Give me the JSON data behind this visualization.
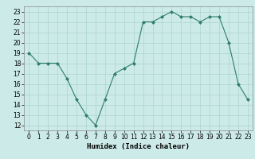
{
  "x": [
    0,
    1,
    2,
    3,
    4,
    5,
    6,
    7,
    8,
    9,
    10,
    11,
    12,
    13,
    14,
    15,
    16,
    17,
    18,
    19,
    20,
    21,
    22,
    23
  ],
  "y": [
    19,
    18,
    18,
    18,
    16.5,
    14.5,
    13,
    12,
    14.5,
    17,
    17.5,
    18,
    22,
    22,
    22.5,
    23,
    22.5,
    22.5,
    22,
    22.5,
    22.5,
    20,
    16,
    14.5
  ],
  "line_color": "#2e7d6e",
  "marker": "D",
  "marker_size": 2,
  "bg_color": "#cceae8",
  "grid_color": "#aad4d0",
  "xlabel": "Humidex (Indice chaleur)",
  "xlim": [
    -0.5,
    23.5
  ],
  "ylim": [
    11.5,
    23.5
  ],
  "yticks": [
    12,
    13,
    14,
    15,
    16,
    17,
    18,
    19,
    20,
    21,
    22,
    23
  ],
  "xticks": [
    0,
    1,
    2,
    3,
    4,
    5,
    6,
    7,
    8,
    9,
    10,
    11,
    12,
    13,
    14,
    15,
    16,
    17,
    18,
    19,
    20,
    21,
    22,
    23
  ],
  "tick_fontsize": 5.5,
  "label_fontsize": 6.5
}
